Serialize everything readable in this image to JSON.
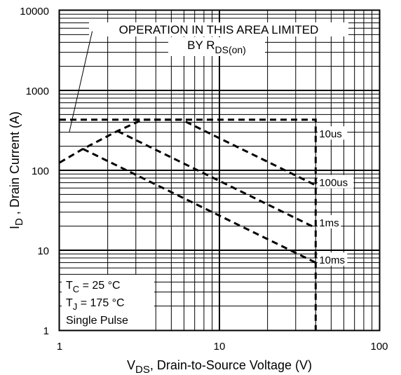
{
  "chart_data": {
    "type": "line",
    "x_scale": "log",
    "y_scale": "log",
    "xlim": [
      1,
      100
    ],
    "ylim": [
      1,
      10000
    ],
    "grid": true,
    "xlabel": {
      "main": "V",
      "sub": "DS",
      "rest": ", Drain-to-Source Voltage (V)"
    },
    "ylabel": {
      "main": "I",
      "sub": "D",
      "rest": " , Drain Current (A)"
    },
    "x_ticks": [
      {
        "value": 1,
        "label": "1"
      },
      {
        "value": 10,
        "label": "10"
      },
      {
        "value": 100,
        "label": "100"
      }
    ],
    "y_ticks": [
      {
        "value": 1,
        "label": "1"
      },
      {
        "value": 10,
        "label": "10"
      },
      {
        "value": 100,
        "label": "100"
      },
      {
        "value": 1000,
        "label": "1000"
      },
      {
        "value": 10000,
        "label": "10000"
      }
    ],
    "series": [
      {
        "name": "10us",
        "points": [
          [
            1.0,
            430
          ],
          [
            40,
            430
          ],
          [
            40,
            270
          ]
        ]
      },
      {
        "name": "100us",
        "points": [
          [
            2.9,
            430
          ],
          [
            5.8,
            430
          ],
          [
            40,
            65
          ]
        ]
      },
      {
        "name": "1ms",
        "points": [
          [
            2.3,
            310
          ],
          [
            40,
            19
          ]
        ]
      },
      {
        "name": "10ms",
        "points": [
          [
            1.4,
            185
          ],
          [
            40,
            7
          ]
        ]
      },
      {
        "name": "rds_limit",
        "points": [
          [
            1.0,
            125
          ],
          [
            1.4,
            185
          ],
          [
            2.3,
            310
          ],
          [
            3.3,
            430
          ]
        ]
      },
      {
        "name": "vds_max",
        "points": [
          [
            40,
            270
          ],
          [
            40,
            1
          ]
        ]
      }
    ],
    "curve_labels": [
      {
        "text": "10us",
        "x": 40,
        "y": 285
      },
      {
        "text": "100us",
        "x": 40,
        "y": 70
      },
      {
        "text": "1ms",
        "x": 40,
        "y": 22
      },
      {
        "text": "10ms",
        "x": 40,
        "y": 7.5
      }
    ],
    "annotation": {
      "line1": "OPERATION IN THIS AREA LIMITED",
      "line2_main": "BY R",
      "line2_sub": "DS(on)",
      "leader": [
        [
          1.6,
          5500
        ],
        [
          1.15,
          300
        ]
      ]
    },
    "conditions": {
      "tc": {
        "main": "T",
        "sub": "C",
        "rest": " = 25 °C"
      },
      "tj": {
        "main": "T",
        "sub": "J",
        "rest": " = 175 °C"
      },
      "pulse": "Single Pulse"
    }
  }
}
